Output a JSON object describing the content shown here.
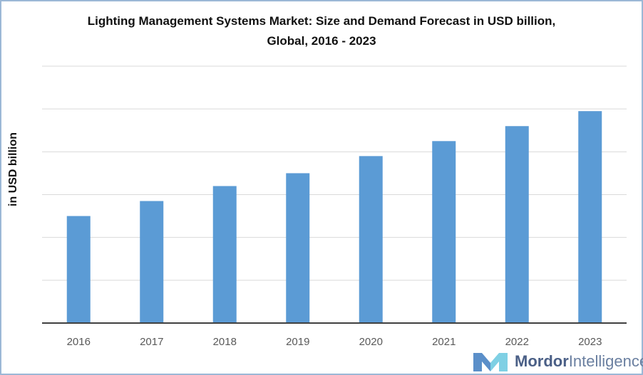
{
  "chart_data": {
    "type": "bar",
    "title_line1": "Lighting Management Systems Market: Size and Demand Forecast in USD billion,",
    "title_line2": "Global, 2016 - 2023",
    "ylabel": "in USD billion",
    "xlabel": "",
    "categories": [
      "2016",
      "2017",
      "2018",
      "2019",
      "2020",
      "2021",
      "2022",
      "2023"
    ],
    "values": [
      2.5,
      2.85,
      3.2,
      3.5,
      3.9,
      4.25,
      4.6,
      4.95
    ],
    "ylim": [
      0,
      6
    ],
    "grid": true,
    "bar_color": "#5b9bd5",
    "grid_color": "#d9d9d9",
    "axis_color": "#404040"
  },
  "branding": {
    "logo_word1": "Mordor",
    "logo_word2": "Intelligence",
    "logo_colors": [
      "#5b8fc9",
      "#7fd0e4",
      "#4a5f86"
    ]
  }
}
